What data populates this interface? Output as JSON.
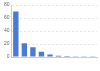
{
  "chart_data": {
    "type": "bar",
    "categories": [
      null,
      null,
      null,
      null,
      null,
      null,
      null,
      null,
      null,
      null
    ],
    "values": [
      70,
      21,
      15,
      8,
      4,
      2,
      1.5,
      1,
      1,
      1
    ],
    "color": "#4a7bd0",
    "ylim": [
      0,
      80
    ],
    "yticks": [
      0,
      20,
      40,
      60,
      80
    ],
    "grid": true,
    "tick_labels": "y"
  }
}
